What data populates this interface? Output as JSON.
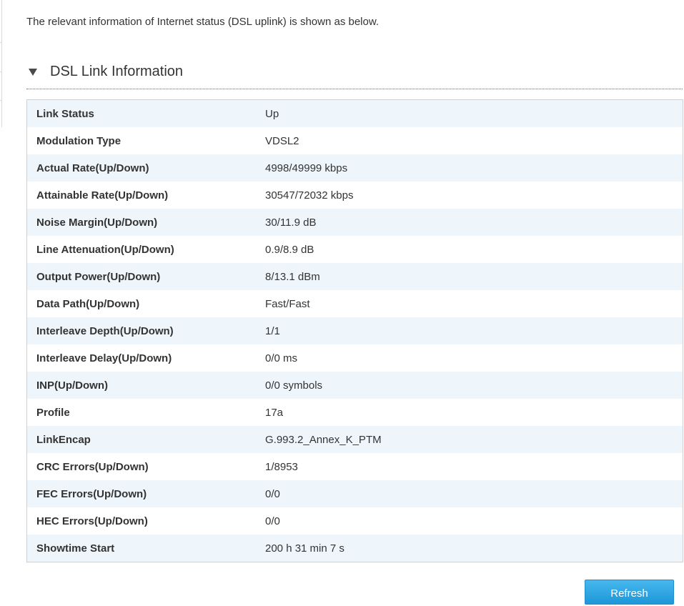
{
  "intro_text": "The relevant information of Internet status (DSL uplink) is shown as below.",
  "section": {
    "title": "DSL Link Information",
    "icon": "triangle-down-icon"
  },
  "rows": [
    {
      "label": "Link Status",
      "value": "Up"
    },
    {
      "label": "Modulation Type",
      "value": "VDSL2"
    },
    {
      "label": "Actual Rate(Up/Down)",
      "value": "4998/49999 kbps"
    },
    {
      "label": "Attainable Rate(Up/Down)",
      "value": "30547/72032 kbps"
    },
    {
      "label": "Noise Margin(Up/Down)",
      "value": "30/11.9 dB"
    },
    {
      "label": "Line Attenuation(Up/Down)",
      "value": "0.9/8.9 dB"
    },
    {
      "label": "Output Power(Up/Down)",
      "value": "8/13.1 dBm"
    },
    {
      "label": "Data Path(Up/Down)",
      "value": "Fast/Fast"
    },
    {
      "label": "Interleave Depth(Up/Down)",
      "value": "1/1"
    },
    {
      "label": "Interleave Delay(Up/Down)",
      "value": "0/0 ms"
    },
    {
      "label": "INP(Up/Down)",
      "value": "0/0 symbols"
    },
    {
      "label": "Profile",
      "value": "17a"
    },
    {
      "label": "LinkEncap",
      "value": "G.993.2_Annex_K_PTM"
    },
    {
      "label": "CRC Errors(Up/Down)",
      "value": "1/8953"
    },
    {
      "label": "FEC Errors(Up/Down)",
      "value": "0/0"
    },
    {
      "label": "HEC Errors(Up/Down)",
      "value": "0/0"
    },
    {
      "label": "Showtime Start",
      "value": "200 h 31 min 7 s"
    }
  ],
  "refresh_label": "Refresh",
  "colors": {
    "row_stripe": "#eef6fc",
    "button_top": "#46b8ee",
    "button_bottom": "#1e97d8"
  }
}
